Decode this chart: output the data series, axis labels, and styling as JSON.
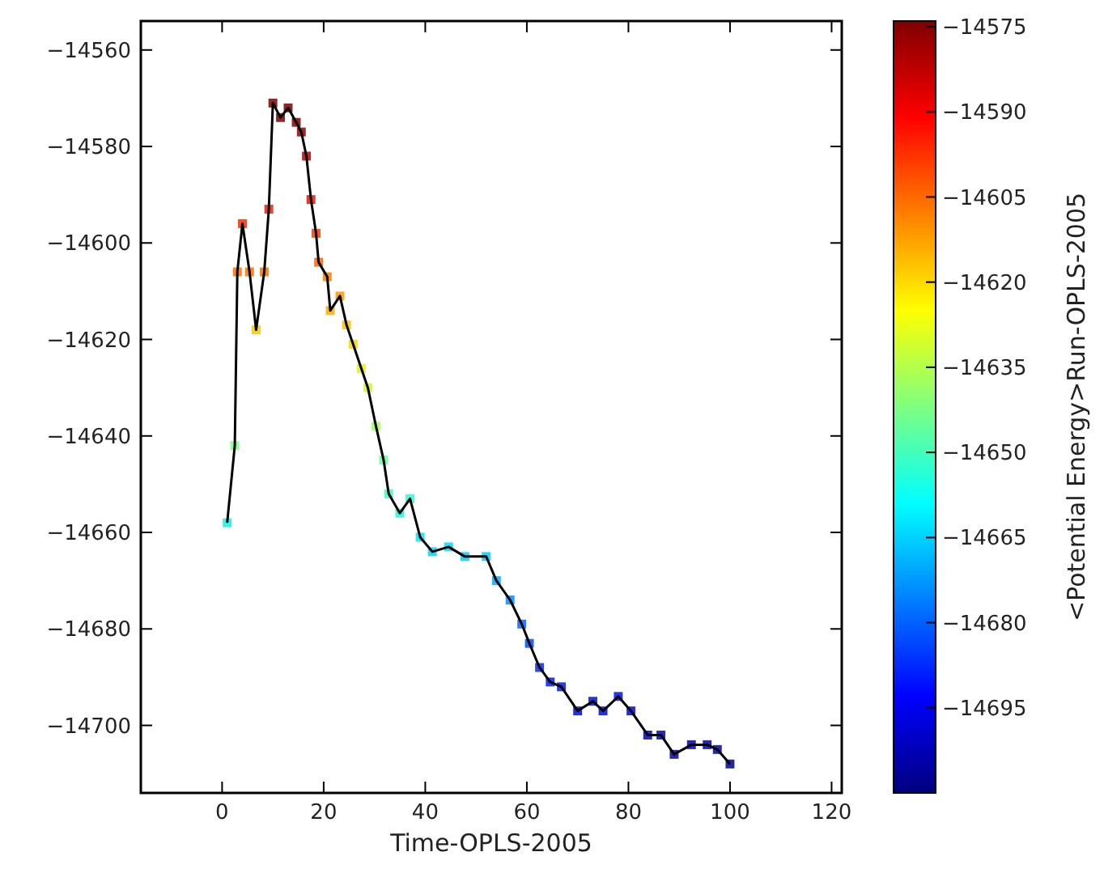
{
  "chart_data": {
    "type": "line",
    "xlabel": "Time-OPLS-2005",
    "clabel": "<Potential Energy>Run-OPLS-2005",
    "marker": "square",
    "grid": false,
    "xlim": [
      -16,
      122
    ],
    "xticks": [
      0,
      20,
      40,
      60,
      80,
      100,
      120
    ],
    "ylim": [
      -14714,
      -14554
    ],
    "yticks": [
      {
        "value": -14700,
        "label": "−14700"
      },
      {
        "value": -14680,
        "label": "−14680"
      },
      {
        "value": -14660,
        "label": "−14660"
      },
      {
        "value": -14640,
        "label": "−14640"
      },
      {
        "value": -14620,
        "label": "−14620"
      },
      {
        "value": -14600,
        "label": "−14600"
      },
      {
        "value": -14580,
        "label": "−14580"
      },
      {
        "value": -14560,
        "label": "−14560"
      }
    ],
    "clim": [
      -14710,
      -14574
    ],
    "cticks": [
      {
        "value": -14695,
        "label": "−14695"
      },
      {
        "value": -14680,
        "label": "−14680"
      },
      {
        "value": -14665,
        "label": "−14665"
      },
      {
        "value": -14650,
        "label": "−14650"
      },
      {
        "value": -14635,
        "label": "−14635"
      },
      {
        "value": -14620,
        "label": "−14620"
      },
      {
        "value": -14605,
        "label": "−14605"
      },
      {
        "value": -14590,
        "label": "−14590"
      },
      {
        "value": -14575,
        "label": "−14575"
      }
    ],
    "series": [
      {
        "color": "#000000",
        "x": [
          1,
          2.5,
          3,
          4,
          5.4,
          6.7,
          8.3,
          9.2,
          10,
          11.5,
          13,
          14.6,
          15.6,
          16.6,
          17.5,
          18.5,
          19,
          20.7,
          21.3,
          23.2,
          24.5,
          25.8,
          27.4,
          28.7,
          30.3,
          31.8,
          32.8,
          35,
          37,
          39,
          41.4,
          44.6,
          47.8,
          52,
          54,
          56.7,
          59,
          60.5,
          62.5,
          64.6,
          66.8,
          70,
          73,
          75,
          78,
          80.5,
          83.8,
          86.4,
          89,
          92.4,
          95.5,
          97.5,
          100
        ],
        "values": [
          -14658,
          -14642,
          -14606,
          -14596,
          -14606,
          -14618,
          -14606,
          -14593,
          -14571,
          -14574,
          -14572,
          -14575,
          -14577,
          -14582,
          -14591,
          -14598,
          -14604,
          -14607,
          -14614,
          -14611,
          -14617,
          -14621,
          -14626,
          -14630,
          -14638,
          -14645,
          -14652,
          -14656,
          -14653,
          -14661,
          -14664,
          -14663,
          -14665,
          -14665,
          -14670,
          -14674,
          -14679,
          -14683,
          -14688,
          -14691,
          -14692,
          -14697,
          -14695,
          -14697,
          -14694,
          -14697,
          -14702,
          -14702,
          -14706,
          -14704,
          -14704,
          -14705,
          -14708
        ]
      }
    ]
  }
}
